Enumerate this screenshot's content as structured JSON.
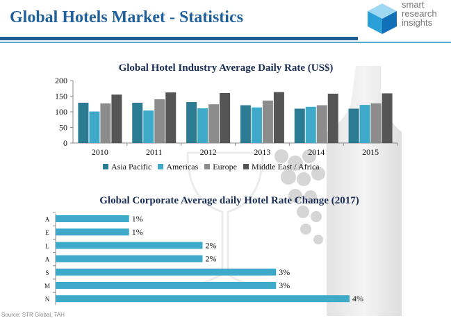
{
  "header": {
    "title": "Global Hotels Market - Statistics",
    "logo_lines": [
      "smart",
      "research",
      "insights"
    ]
  },
  "colors": {
    "title": "#1f5f9a",
    "rule_dark": "#1d5f96",
    "rule_light": "#58a8d4"
  },
  "chart_data": [
    {
      "type": "bar",
      "title": "Global Hotel Industry Average Daily Rate (US$)",
      "categories": [
        "2010",
        "2011",
        "2012",
        "2013",
        "2014",
        "2015"
      ],
      "series": [
        {
          "name": "Asia Pacific",
          "color": "#2b7b92",
          "values": [
            129,
            129,
            131,
            121,
            110,
            110
          ]
        },
        {
          "name": "Americas",
          "color": "#3fa9c9",
          "values": [
            101,
            104,
            111,
            114,
            116,
            122
          ]
        },
        {
          "name": "Europe",
          "color": "#8c8c8c",
          "values": [
            127,
            140,
            124,
            136,
            121,
            127
          ]
        },
        {
          "name": "Middle East / Africa",
          "color": "#555555",
          "values": [
            155,
            162,
            160,
            163,
            158,
            159
          ]
        }
      ],
      "yticks": [
        0,
        50,
        100,
        150,
        200
      ],
      "ylim": [
        0,
        200
      ],
      "legend": "bottom",
      "grid": false
    },
    {
      "type": "bar",
      "orientation": "horizontal",
      "title": "Global Corporate Average daily Hotel Rate Change (2017)",
      "categories": [
        "A",
        "E",
        "L",
        "A",
        "S",
        "M",
        "N"
      ],
      "values": [
        1,
        1,
        2,
        2,
        3,
        3,
        4
      ],
      "value_labels": [
        "1%",
        "1%",
        "2%",
        "2%",
        "3%",
        "3%",
        "4%"
      ],
      "color": "#3fa9c9",
      "xlim": [
        0,
        4
      ],
      "grid": false
    }
  ],
  "source_note": "Source: STR Global, TAH"
}
